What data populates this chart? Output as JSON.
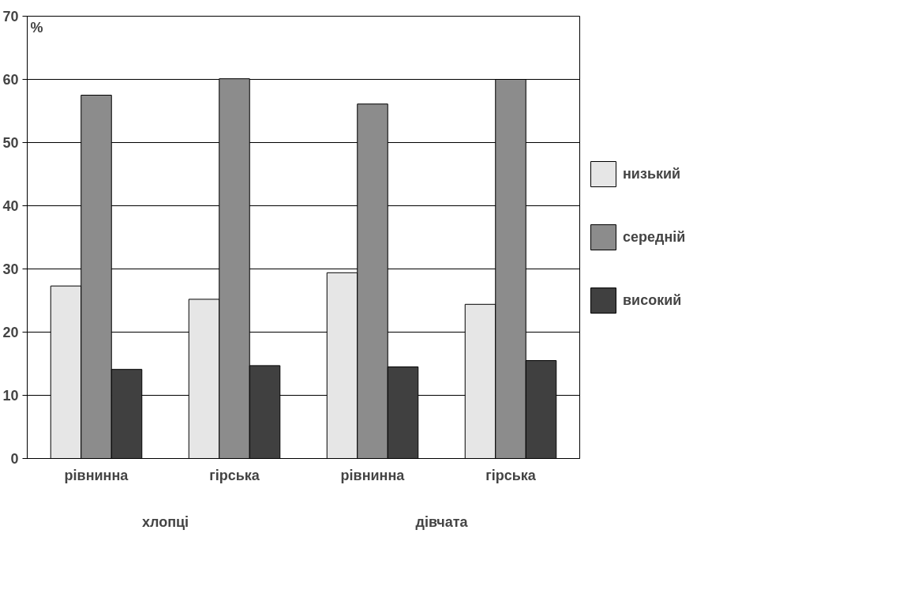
{
  "chart_data": {
    "type": "bar",
    "ylabel": "%",
    "categories": [
      "рівнинна",
      "гірська",
      "рівнинна",
      "гірська"
    ],
    "series": [
      {
        "name": "низький",
        "color": "#e6e6e6",
        "values": [
          27.3,
          25.2,
          29.4,
          24.4
        ]
      },
      {
        "name": "середній",
        "color": "#8c8c8c",
        "values": [
          57.5,
          60.1,
          56.1,
          60.0
        ]
      },
      {
        "name": "високий",
        "color": "#404040",
        "values": [
          14.1,
          14.7,
          14.5,
          15.5
        ]
      }
    ],
    "annotations": [
      "хлопці",
      "дівчата"
    ],
    "ylim": [
      0,
      70
    ],
    "yticks": [
      0,
      10,
      20,
      30,
      40,
      50,
      60,
      70
    ],
    "grid": "y",
    "legend": "right"
  }
}
